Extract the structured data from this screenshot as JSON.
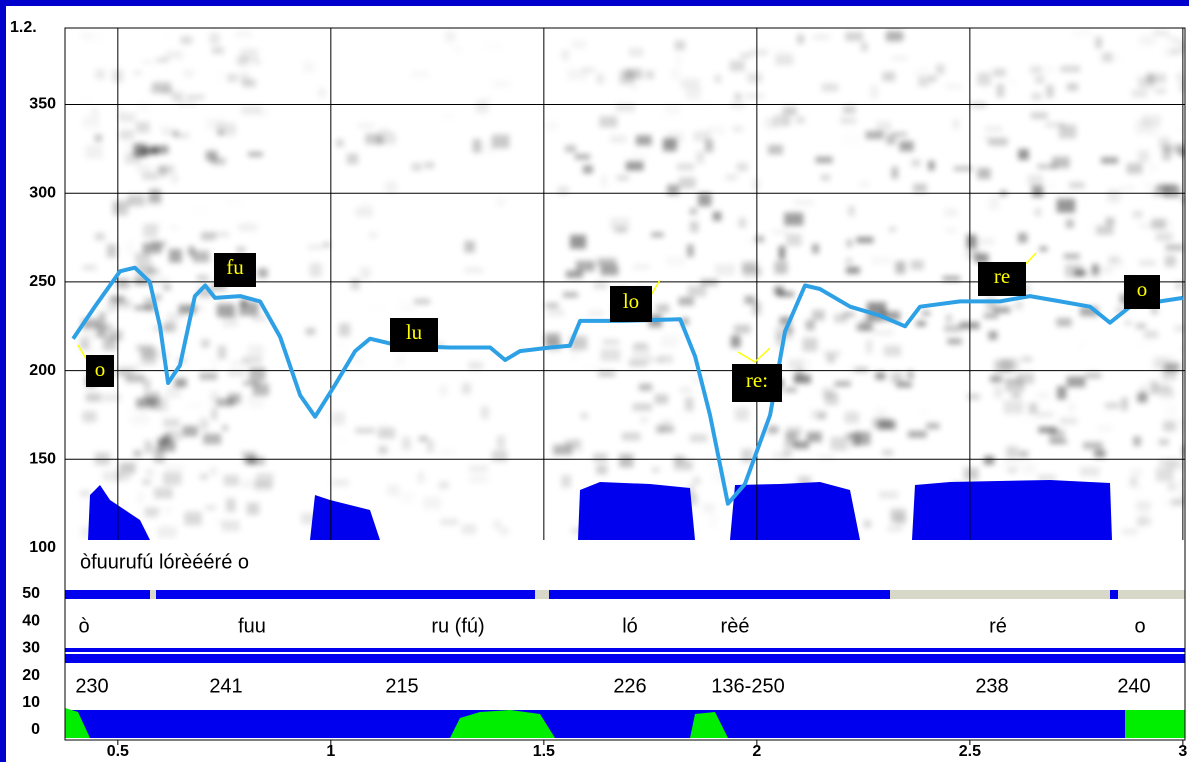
{
  "chart_data": {
    "type": "line",
    "panel_label": "1.2.",
    "xlim": [
      0.376,
      3.005
    ],
    "ylim": [
      100,
      392
    ],
    "xticks": [
      0.5,
      1,
      1.5,
      2,
      2.5,
      3
    ],
    "yticks": [
      100,
      150,
      200,
      250,
      300,
      350
    ],
    "y2lim": [
      0,
      50
    ],
    "y2ticks": [
      0,
      10,
      20,
      30,
      40,
      50
    ],
    "grid": true,
    "x": [
      0.395,
      0.446,
      0.505,
      0.54,
      0.575,
      0.599,
      0.618,
      0.646,
      0.681,
      0.705,
      0.728,
      0.787,
      0.834,
      0.881,
      0.928,
      0.963,
      1.01,
      1.057,
      1.092,
      1.162,
      1.28,
      1.374,
      1.409,
      1.444,
      1.515,
      1.561,
      1.585,
      1.679,
      1.82,
      1.855,
      1.89,
      1.932,
      1.972,
      2.031,
      2.066,
      2.113,
      2.148,
      2.219,
      2.289,
      2.348,
      2.383,
      2.477,
      2.571,
      2.641,
      2.712,
      2.782,
      2.829,
      2.876,
      2.946,
      3.0
    ],
    "series": [
      {
        "color": "#2ea0e6",
        "values": [
          218,
          236,
          256,
          258,
          250,
          225,
          193,
          203,
          242,
          248,
          241,
          242,
          239,
          219,
          186,
          174,
          192,
          211,
          218,
          214,
          213,
          213,
          206,
          211,
          213,
          214,
          228,
          228,
          229,
          208,
          175,
          125,
          136,
          175,
          222,
          248,
          246,
          236,
          231,
          225,
          236,
          239,
          239,
          242,
          239,
          236,
          227,
          236,
          239,
          241
        ]
      }
    ],
    "annotations": [
      "o",
      "fu",
      "lu",
      "lo",
      "re:",
      "re",
      "o"
    ]
  },
  "tiers": {
    "transcription": "òfuurufú lórèééré o",
    "syllables": [
      "ò",
      "fuu",
      "ru (fú)",
      "ló",
      "rèé",
      "ré",
      "o"
    ],
    "f0_labels": [
      "230",
      "241",
      "215",
      "226",
      "136-250",
      "238",
      "240"
    ]
  }
}
